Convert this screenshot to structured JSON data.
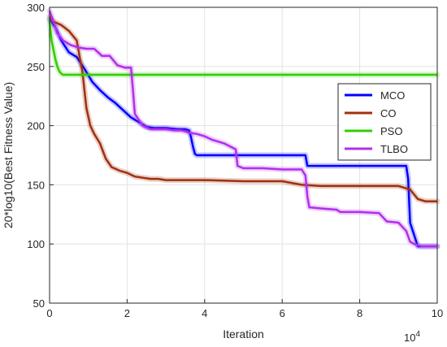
{
  "chart_data": {
    "type": "line",
    "title": "",
    "xlabel": "Iteration",
    "ylabel": "20*log10(Best Fitness Value)",
    "x_exponent_label": "10",
    "x_exponent_power": "4",
    "xlim": [
      0,
      10
    ],
    "ylim": [
      50,
      300
    ],
    "x_ticks": [
      0,
      2,
      4,
      6,
      8,
      10
    ],
    "y_ticks": [
      50,
      100,
      150,
      200,
      250,
      300
    ],
    "grid": true,
    "legend_position": "right",
    "series": [
      {
        "name": "MCO",
        "color": "#0000ff",
        "x": [
          0,
          0.15,
          0.3,
          0.5,
          0.7,
          0.9,
          1.1,
          1.3,
          1.5,
          1.7,
          1.9,
          2.1,
          2.3,
          2.5,
          2.7,
          3.0,
          3.3,
          3.5,
          3.6,
          3.65,
          3.7,
          3.75,
          3.8,
          4.5,
          5.0,
          5.5,
          6.0,
          6.5,
          6.6,
          6.65,
          7.0,
          8.0,
          9.0,
          9.2,
          9.25,
          9.3,
          9.5,
          9.7,
          10.0
        ],
        "y": [
          290,
          283,
          272,
          262,
          258,
          248,
          237,
          230,
          224,
          219,
          213,
          207,
          203,
          199,
          198,
          198,
          197,
          197,
          196,
          190,
          182,
          176,
          175,
          175,
          175,
          175,
          175,
          175,
          175,
          166,
          166,
          166,
          166,
          166,
          155,
          118,
          98,
          98,
          98
        ]
      },
      {
        "name": "CO",
        "color": "#a0300f",
        "x": [
          0,
          0.1,
          0.3,
          0.5,
          0.7,
          0.85,
          0.95,
          1.05,
          1.15,
          1.3,
          1.45,
          1.6,
          1.8,
          2.0,
          2.2,
          2.4,
          2.6,
          2.8,
          3.0,
          4.0,
          5.0,
          6.0,
          6.5,
          7.0,
          8.0,
          9.0,
          9.3,
          9.5,
          9.7,
          10.0
        ],
        "y": [
          292,
          288,
          285,
          280,
          272,
          245,
          215,
          200,
          193,
          185,
          172,
          165,
          162,
          160,
          157,
          156,
          155,
          155,
          154,
          154,
          153,
          153,
          150,
          149,
          149,
          149,
          146,
          138,
          136,
          136
        ]
      },
      {
        "name": "PSO",
        "color": "#33cc00",
        "x": [
          0,
          0.05,
          0.1,
          0.15,
          0.2,
          0.25,
          0.3,
          0.35,
          10.0
        ],
        "y": [
          288,
          272,
          264,
          256,
          250,
          246,
          244,
          243,
          243
        ]
      },
      {
        "name": "TLBO",
        "color": "#b22eeb",
        "x": [
          0,
          0.1,
          0.2,
          0.35,
          0.55,
          0.75,
          0.95,
          1.15,
          1.35,
          1.55,
          1.75,
          1.95,
          2.1,
          2.15,
          2.2,
          2.4,
          2.6,
          2.8,
          3.0,
          3.2,
          3.4,
          3.6,
          3.8,
          4.0,
          4.2,
          4.5,
          4.8,
          4.85,
          5.0,
          5.5,
          6.0,
          6.5,
          6.6,
          6.65,
          6.7,
          7.0,
          7.4,
          7.5,
          8.0,
          8.5,
          8.7,
          9.0,
          9.2,
          9.3,
          9.4,
          9.5,
          9.6,
          9.7,
          10.0
        ],
        "y": [
          297,
          288,
          278,
          272,
          268,
          266,
          265,
          265,
          259,
          259,
          251,
          249,
          249,
          230,
          210,
          200,
          197,
          197,
          197,
          196,
          196,
          194,
          193,
          191,
          188,
          185,
          180,
          166,
          164,
          164,
          163,
          163,
          158,
          140,
          131,
          130,
          129,
          127,
          127,
          126,
          119,
          118,
          111,
          102,
          100,
          99,
          98,
          98,
          98
        ]
      }
    ]
  }
}
